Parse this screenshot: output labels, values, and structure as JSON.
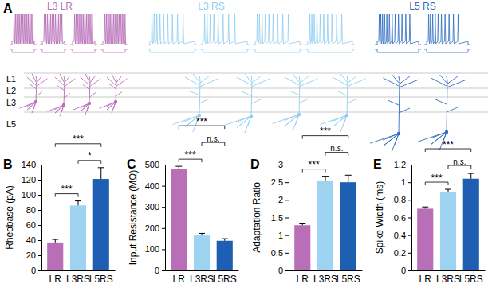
{
  "figure": {
    "panel_label": "A",
    "groups": [
      {
        "label": "L3 LR",
        "color": "#b86fb8"
      },
      {
        "label": "L3 RS",
        "color": "#8fcdf0"
      },
      {
        "label": "L5 RS",
        "color": "#2f6cc0"
      }
    ],
    "layers": [
      "L1",
      "L2",
      "L3",
      "L5"
    ]
  },
  "chart_data": [
    {
      "type": "bar",
      "title": "B",
      "y_label": "Rheobase (pA)",
      "categories": [
        "LR",
        "L3RS",
        "L5RS"
      ],
      "values": [
        37,
        86,
        121
      ],
      "error": [
        4,
        6,
        15
      ],
      "colors": [
        "#b86fb8",
        "#9fd3f2",
        "#1e5fb4"
      ],
      "ylim": [
        0,
        140
      ],
      "yticks": [
        0,
        20,
        40,
        60,
        80,
        100,
        120,
        140
      ],
      "annotations": [
        {
          "from": "LR",
          "to": "L3RS",
          "text": "***"
        },
        {
          "from": "L3RS",
          "to": "L5RS",
          "text": "*"
        },
        {
          "from": "LR",
          "to": "L5RS",
          "text": "***"
        }
      ]
    },
    {
      "type": "bar",
      "title": "C",
      "y_label": "Input Resistance (MΩ)",
      "categories": [
        "LR",
        "L3RS",
        "L5RS"
      ],
      "values": [
        480,
        165,
        140
      ],
      "error": [
        12,
        10,
        10
      ],
      "colors": [
        "#b86fb8",
        "#9fd3f2",
        "#1e5fb4"
      ],
      "ylim": [
        0,
        500
      ],
      "yticks": [
        0,
        100,
        200,
        300,
        400,
        500
      ],
      "annotations": [
        {
          "from": "LR",
          "to": "L3RS",
          "text": "***"
        },
        {
          "from": "L3RS",
          "to": "L5RS",
          "text": "n.s."
        },
        {
          "from": "LR",
          "to": "L5RS",
          "text": "***"
        }
      ]
    },
    {
      "type": "bar",
      "title": "D",
      "y_label": "Adaptation Ratio",
      "categories": [
        "LR",
        "L3RS",
        "L5RS"
      ],
      "values": [
        1.28,
        2.55,
        2.5
      ],
      "error": [
        0.04,
        0.12,
        0.2
      ],
      "colors": [
        "#b86fb8",
        "#9fd3f2",
        "#1e5fb4"
      ],
      "ylim": [
        0,
        3
      ],
      "yticks": [
        0,
        0.5,
        1,
        1.5,
        2,
        2.5,
        3
      ],
      "annotations": [
        {
          "from": "LR",
          "to": "L3RS",
          "text": "***"
        },
        {
          "from": "L3RS",
          "to": "L5RS",
          "text": "n.s."
        },
        {
          "from": "LR",
          "to": "L5RS",
          "text": "***"
        }
      ]
    },
    {
      "type": "bar",
      "title": "E",
      "y_label": "Spike Width (ms)",
      "categories": [
        "LR",
        "L3RS",
        "L5RS"
      ],
      "values": [
        0.7,
        0.89,
        1.04
      ],
      "error": [
        0.02,
        0.03,
        0.06
      ],
      "colors": [
        "#b86fb8",
        "#9fd3f2",
        "#1e5fb4"
      ],
      "ylim": [
        0,
        1.2
      ],
      "yticks": [
        0,
        0.2,
        0.4,
        0.6,
        0.8,
        1,
        1.2
      ],
      "annotations": [
        {
          "from": "LR",
          "to": "L3RS",
          "text": "***"
        },
        {
          "from": "L3RS",
          "to": "L5RS",
          "text": "n.s."
        },
        {
          "from": "LR",
          "to": "L5RS",
          "text": "***"
        }
      ]
    }
  ]
}
